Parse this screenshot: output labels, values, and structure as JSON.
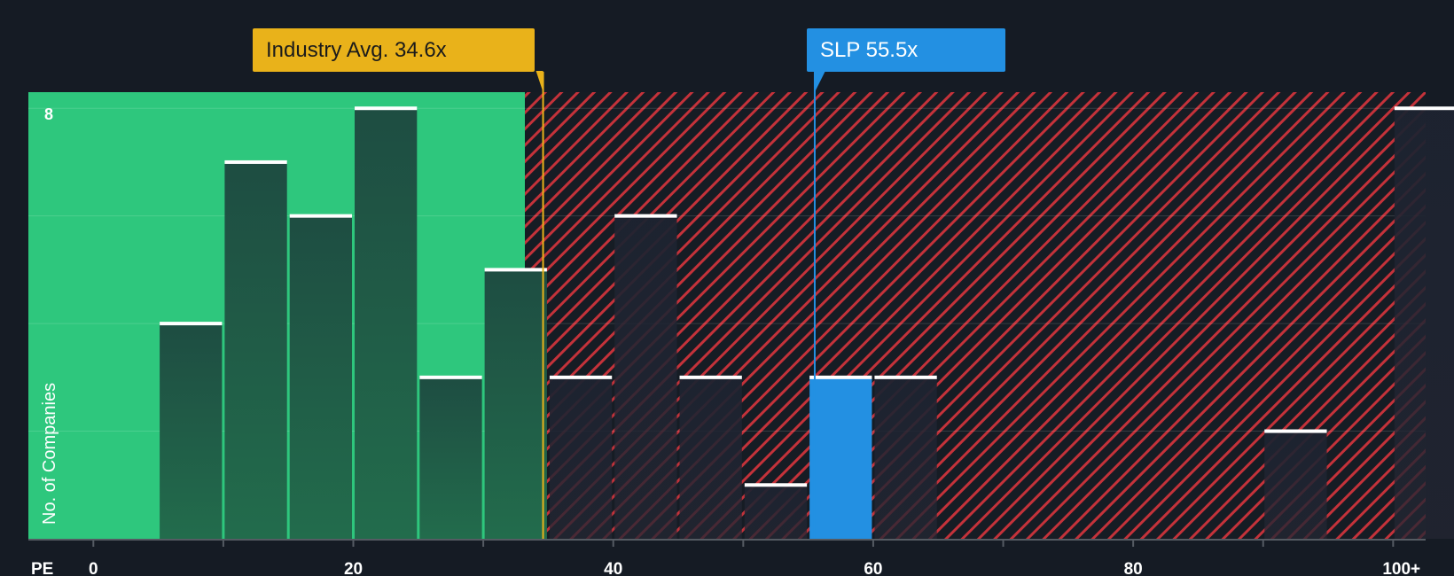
{
  "chart_data": {
    "type": "bar",
    "title": "",
    "xlabel": "PE",
    "ylabel": "No. of Companies",
    "xlim": [
      -5,
      102.5
    ],
    "ylim": [
      0,
      8.3
    ],
    "x_ticks": [
      {
        "value": 0,
        "label": "0"
      },
      {
        "value": 20,
        "label": "20"
      },
      {
        "value": 40,
        "label": "40"
      },
      {
        "value": 60,
        "label": "60"
      },
      {
        "value": 80,
        "label": "80"
      },
      {
        "value": 100,
        "label": "100+"
      }
    ],
    "y_tick_labels": [
      {
        "value": 8,
        "label": "8"
      }
    ],
    "y_gridlines": [
      2,
      4,
      6,
      8
    ],
    "bin_width": 5,
    "bins": [
      {
        "start": 5,
        "count": 4
      },
      {
        "start": 10,
        "count": 7
      },
      {
        "start": 15,
        "count": 6
      },
      {
        "start": 20,
        "count": 8
      },
      {
        "start": 25,
        "count": 3
      },
      {
        "start": 30,
        "count": 5
      },
      {
        "start": 35,
        "count": 3
      },
      {
        "start": 40,
        "count": 6
      },
      {
        "start": 45,
        "count": 3
      },
      {
        "start": 50,
        "count": 1
      },
      {
        "start": 55,
        "count": 3,
        "highlight": true
      },
      {
        "start": 60,
        "count": 3
      },
      {
        "start": 90,
        "count": 2
      },
      {
        "start": 100,
        "count": 8
      }
    ],
    "fair_range_end": 33.2,
    "industry_avg": {
      "value": 34.6,
      "label": "Industry Avg. 34.6x"
    },
    "company": {
      "ticker": "SLP",
      "value": 55.5,
      "label": "SLP 55.5x"
    },
    "colors": {
      "background": "#151b24",
      "fair_zone": "#2ec77d",
      "over_zone_stripe": "#c4323a",
      "industry_line": "#e9b21a",
      "company_bar": "#2390e2",
      "bar_cap": "#ffffff",
      "axis": "#555b63"
    }
  }
}
